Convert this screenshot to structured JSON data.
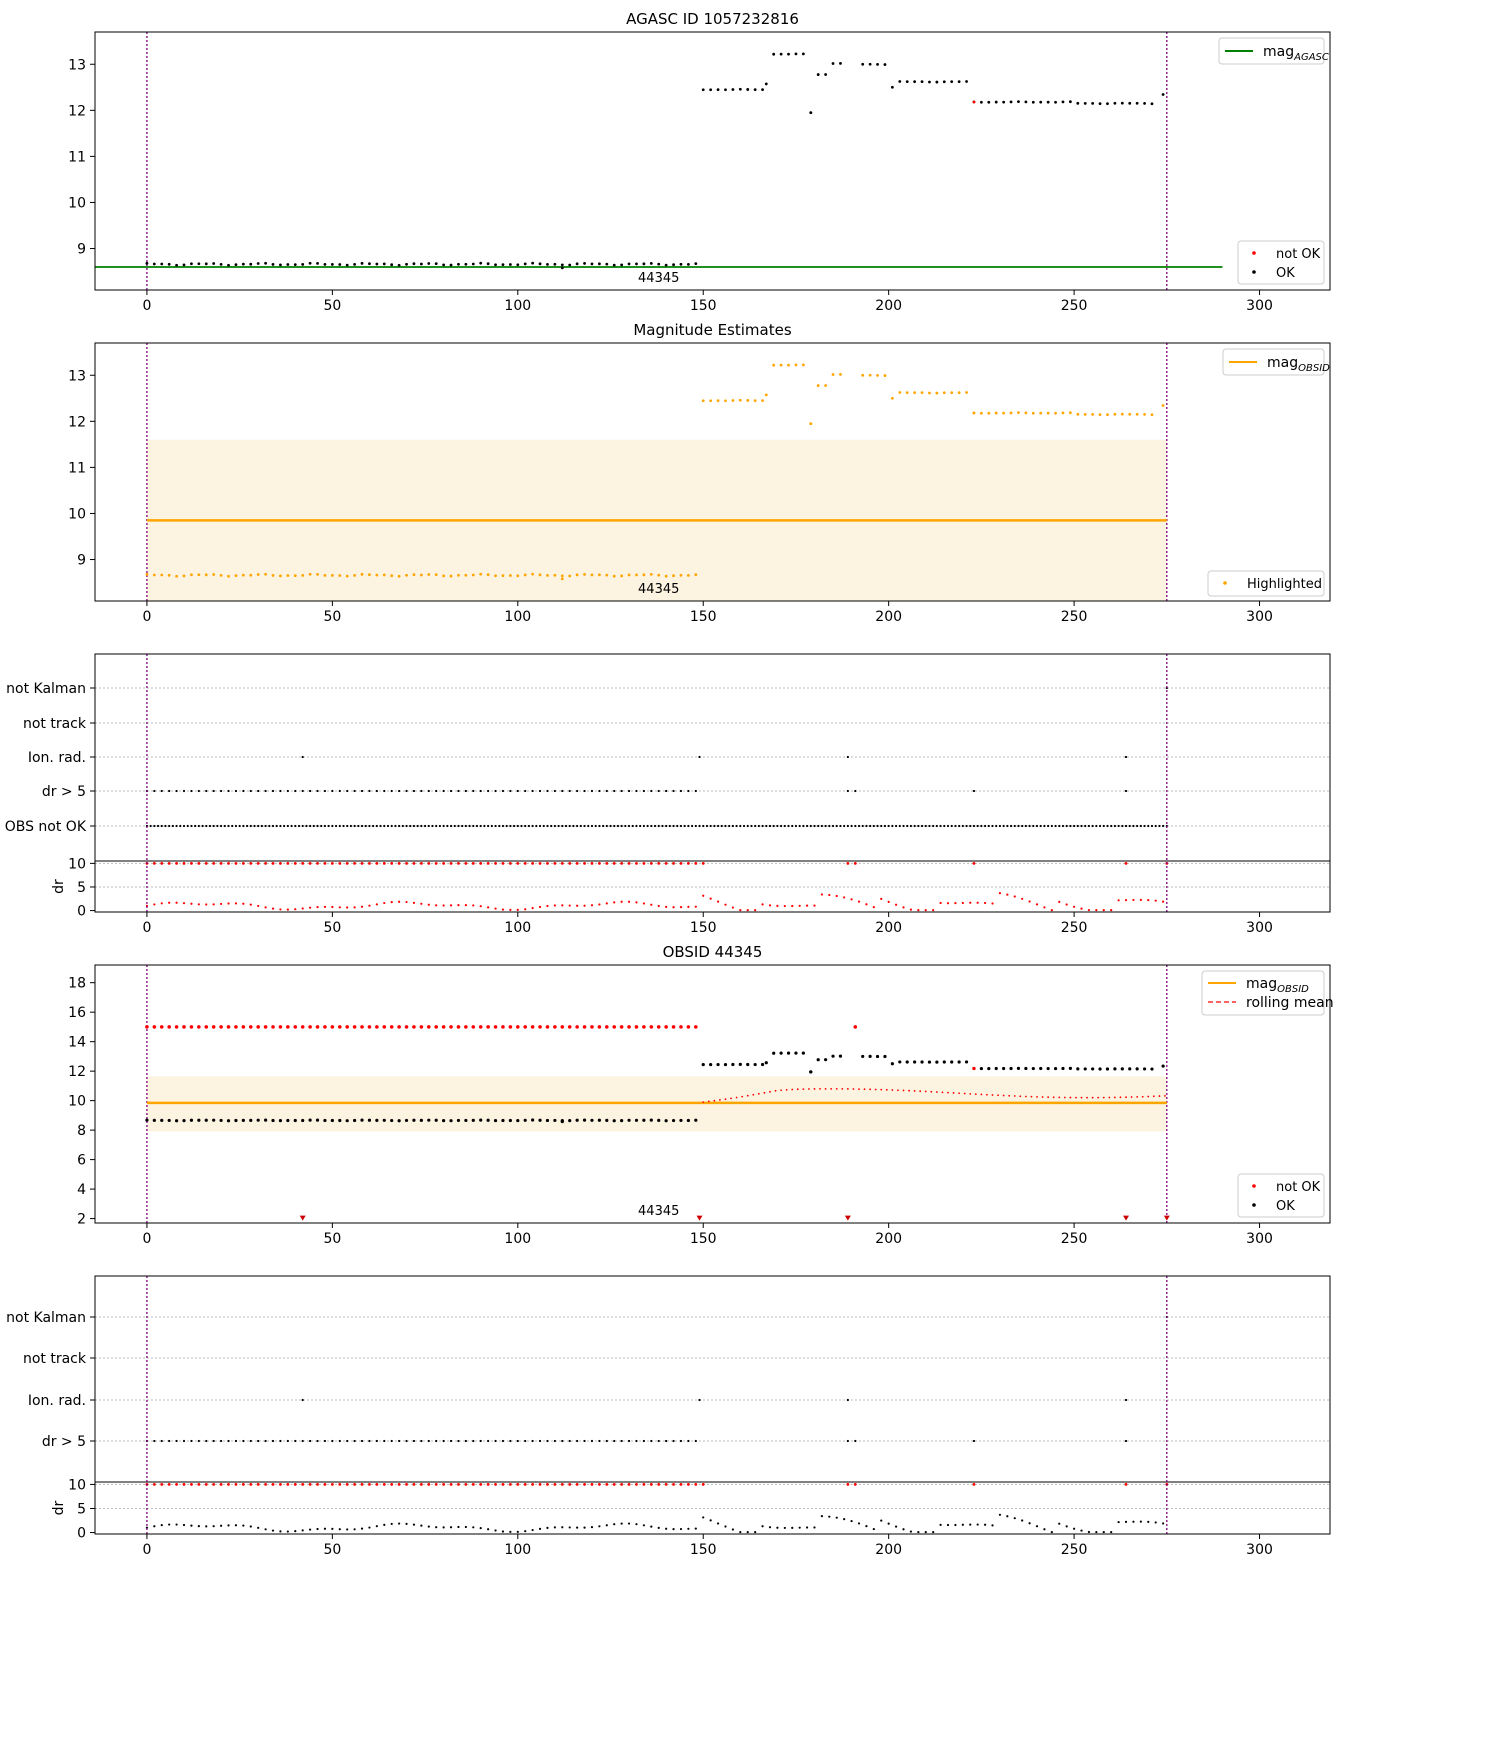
{
  "chart_data": [
    {
      "type": "scatter",
      "title": "AGASC ID 1057232816",
      "xlim": [
        -14,
        319
      ],
      "ylim": [
        8.1,
        13.7
      ],
      "xticks": [
        0,
        50,
        100,
        150,
        200,
        250,
        300
      ],
      "yticks": [
        9,
        10,
        11,
        12,
        13
      ],
      "xlabel": "",
      "ylabel": "",
      "grid": false,
      "obsid_label": "44345",
      "vlines": [
        0,
        275
      ],
      "hline": {
        "name": "mag_AGASC",
        "y": 8.6,
        "x": [
          -14,
          290
        ],
        "color": "#008000"
      },
      "legend_line": {
        "text": "mag",
        "sub": "AGASC",
        "color": "#008000",
        "location": "upper right"
      },
      "legend_points": {
        "location": "lower right",
        "entries": [
          {
            "name": "not OK",
            "color": "#ff0000"
          },
          {
            "name": "OK",
            "color": "#000000"
          }
        ]
      },
      "series": [
        {
          "name": "OK",
          "color": "#000000",
          "points": "mag_ok"
        },
        {
          "name": "not OK",
          "color": "#ff0000",
          "points": "mag_notok"
        }
      ]
    },
    {
      "type": "scatter",
      "title": "Magnitude Estimates",
      "xlim": [
        -14,
        319
      ],
      "ylim": [
        8.1,
        13.7
      ],
      "xticks": [
        0,
        50,
        100,
        150,
        200,
        250,
        300
      ],
      "yticks": [
        9,
        10,
        11,
        12,
        13
      ],
      "grid": false,
      "obsid_label": "44345",
      "vlines": [
        0,
        275
      ],
      "band": {
        "x": [
          0,
          275
        ],
        "y": [
          8.05,
          11.6
        ],
        "color": "#fdf3e1"
      },
      "hline": {
        "name": "mag_OBSID",
        "y": 9.85,
        "x": [
          0,
          275
        ],
        "color": "#ffa500"
      },
      "legend_line": {
        "text": "mag",
        "sub": "OBSID",
        "color": "#ffa500",
        "location": "upper right"
      },
      "legend_points": {
        "location": "lower right",
        "entries": [
          {
            "name": "Highlighted",
            "color": "#ffa500"
          }
        ]
      },
      "series": [
        {
          "name": "Highlighted",
          "color": "#ffa500",
          "points": "mag_all"
        }
      ]
    },
    {
      "type": "scatter",
      "title": "",
      "xlim": [
        -14,
        319
      ],
      "xticks": [
        0,
        50,
        100,
        150,
        200,
        250,
        300
      ],
      "grid": true,
      "vlines": [
        0,
        275
      ],
      "flag_labels": [
        "not Kalman",
        "not track",
        "Ion. rad.",
        "dr > 5",
        "OBS not OK"
      ],
      "flags": {
        "not Kalman": [
          275
        ],
        "not track": [],
        "Ion. rad.": [
          42,
          149,
          189,
          264
        ],
        "dr > 5": "dr5",
        "OBS not OK": "all"
      },
      "dr_panel": {
        "ylabel": "dr",
        "ylim": [
          -0.3,
          10.5
        ],
        "yticks": [
          0,
          5,
          10
        ],
        "clip_value": 10,
        "color": "#ff0000"
      }
    },
    {
      "type": "scatter",
      "title": "OBSID 44345",
      "xlim": [
        -14,
        319
      ],
      "ylim": [
        1.7,
        19.2
      ],
      "xticks": [
        0,
        50,
        100,
        150,
        200,
        250,
        300
      ],
      "yticks": [
        2,
        4,
        6,
        8,
        10,
        12,
        14,
        16,
        18
      ],
      "grid": false,
      "obsid_label": "44345",
      "vlines": [
        0,
        275
      ],
      "band": {
        "x": [
          0,
          275
        ],
        "y": [
          7.9,
          11.65
        ],
        "color": "#fdf3e1"
      },
      "hline": {
        "name": "mag_OBSID",
        "y": 9.85,
        "x": [
          0,
          275
        ],
        "color": "#ffa500"
      },
      "legend_lines": {
        "location": "upper right",
        "entries": [
          {
            "text": "mag",
            "sub": "OBSID",
            "color": "#ffa500",
            "style": "solid"
          },
          {
            "text": "rolling mean",
            "color": "#ff0000",
            "style": "dashed"
          }
        ]
      },
      "legend_points": {
        "location": "lower right",
        "entries": [
          {
            "name": "not OK",
            "color": "#ff0000"
          },
          {
            "name": "OK",
            "color": "#000000"
          }
        ]
      },
      "markers_low": [
        42,
        149,
        189,
        264,
        275
      ],
      "series": [
        {
          "name": "OK",
          "color": "#000000",
          "points": "mag_ok"
        },
        {
          "name": "not OK",
          "color": "#ff0000",
          "points": "notok_15"
        },
        {
          "name": "rolling mean",
          "color": "#ff0000",
          "points": "rolling"
        }
      ]
    },
    {
      "type": "scatter",
      "title": "",
      "xlim": [
        -14,
        319
      ],
      "xticks": [
        0,
        50,
        100,
        150,
        200,
        250,
        300
      ],
      "grid": true,
      "vlines": [
        0,
        275
      ],
      "flag_labels": [
        "not Kalman",
        "not track",
        "Ion. rad.",
        "dr > 5"
      ],
      "flags": {
        "not Kalman": [
          275
        ],
        "not track": [],
        "Ion. rad.": [
          42,
          149,
          189,
          264
        ],
        "dr > 5": "dr5"
      },
      "dr_panel": {
        "ylabel": "dr",
        "ylim": [
          -0.3,
          10.5
        ],
        "yticks": [
          0,
          5,
          10
        ],
        "clip_value": 10,
        "color": "#000000"
      }
    }
  ],
  "series_data": {
    "mag_segments": [
      {
        "x": [
          0,
          149
        ],
        "y": 8.66
      },
      {
        "x": [
          150,
          166
        ],
        "y": 12.45
      },
      {
        "x": [
          167,
          167
        ],
        "y": 12.58
      },
      {
        "x": [
          169,
          177
        ],
        "y": 13.22
      },
      {
        "x": [
          179,
          179
        ],
        "y": 11.95
      },
      {
        "x": [
          181,
          183
        ],
        "y": 12.78
      },
      {
        "x": [
          185,
          187
        ],
        "y": 13.02
      },
      {
        "x": [
          193,
          199
        ],
        "y": 13.0
      },
      {
        "x": [
          201,
          201
        ],
        "y": 12.5
      },
      {
        "x": [
          203,
          221
        ],
        "y": 12.62
      },
      {
        "x": [
          223,
          249
        ],
        "y": 12.18
      },
      {
        "x": [
          251,
          272
        ],
        "y": 12.15
      },
      {
        "x": [
          274,
          274
        ],
        "y": 12.35
      }
    ],
    "mag_notok_x": [
      223
    ],
    "notok15_x_range": [
      0,
      148
    ],
    "notok15_extra": [
      {
        "x": 191,
        "y": 15.0
      }
    ],
    "dr5_ranges": [
      [
        0,
        149
      ]
    ],
    "dr5_extra": [
      189,
      191,
      223,
      264
    ],
    "dr_high_x": [
      150,
      189,
      191,
      223,
      264,
      275
    ]
  }
}
